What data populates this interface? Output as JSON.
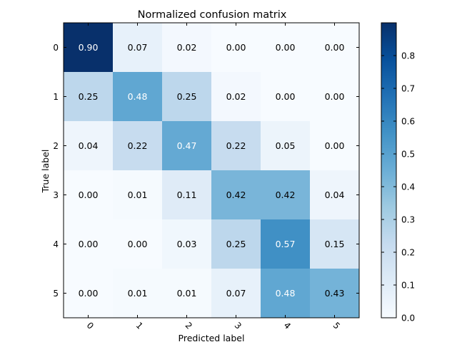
{
  "chart_data": {
    "type": "heatmap",
    "title": "Normalized confusion matrix",
    "xlabel": "Predicted label",
    "ylabel": "True label",
    "x_categories": [
      "0",
      "1",
      "2",
      "3",
      "4",
      "5"
    ],
    "y_categories": [
      "0",
      "1",
      "2",
      "3",
      "4",
      "5"
    ],
    "values": [
      [
        0.9,
        0.07,
        0.02,
        0.0,
        0.0,
        0.0
      ],
      [
        0.25,
        0.48,
        0.25,
        0.02,
        0.0,
        0.0
      ],
      [
        0.04,
        0.22,
        0.47,
        0.22,
        0.05,
        0.0
      ],
      [
        0.0,
        0.01,
        0.11,
        0.42,
        0.42,
        0.04
      ],
      [
        0.0,
        0.0,
        0.03,
        0.25,
        0.57,
        0.15
      ],
      [
        0.0,
        0.01,
        0.01,
        0.07,
        0.48,
        0.43
      ]
    ],
    "value_labels": [
      [
        "0.90",
        "0.07",
        "0.02",
        "0.00",
        "0.00",
        "0.00"
      ],
      [
        "0.25",
        "0.48",
        "0.25",
        "0.02",
        "0.00",
        "0.00"
      ],
      [
        "0.04",
        "0.22",
        "0.47",
        "0.22",
        "0.05",
        "0.00"
      ],
      [
        "0.00",
        "0.01",
        "0.11",
        "0.42",
        "0.42",
        "0.04"
      ],
      [
        "0.00",
        "0.00",
        "0.03",
        "0.25",
        "0.57",
        "0.15"
      ],
      [
        "0.00",
        "0.01",
        "0.01",
        "0.07",
        "0.48",
        "0.43"
      ]
    ],
    "colormap": "Blues",
    "colorbar": {
      "min": 0.0,
      "max": 0.9,
      "ticks": [
        0.0,
        0.1,
        0.2,
        0.3,
        0.4,
        0.5,
        0.6,
        0.7,
        0.8
      ],
      "tick_labels": [
        "0.0",
        "0.1",
        "0.2",
        "0.3",
        "0.4",
        "0.5",
        "0.6",
        "0.7",
        "0.8"
      ]
    },
    "text_colors": {
      "dark": "#000000",
      "light": "#ffffff"
    },
    "text_threshold": 0.45
  }
}
